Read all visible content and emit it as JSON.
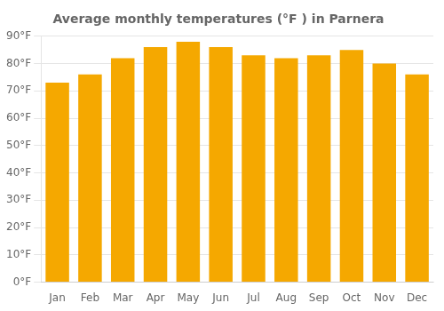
{
  "chart_data": {
    "type": "bar",
    "title": "Average monthly temperatures (°F ) in Parnera",
    "categories": [
      "Jan",
      "Feb",
      "Mar",
      "Apr",
      "May",
      "Jun",
      "Jul",
      "Aug",
      "Sep",
      "Oct",
      "Nov",
      "Dec"
    ],
    "values": [
      73,
      76,
      82,
      86,
      88,
      86,
      83,
      82,
      83,
      85,
      80,
      76
    ],
    "color": "#F5A800",
    "ylim": [
      0,
      90
    ],
    "yticks": [
      {
        "value": 0,
        "label": "0°F"
      },
      {
        "value": 10,
        "label": "10°F"
      },
      {
        "value": 20,
        "label": "20°F"
      },
      {
        "value": 30,
        "label": "30°F"
      },
      {
        "value": 40,
        "label": "40°F"
      },
      {
        "value": 50,
        "label": "50°F"
      },
      {
        "value": 60,
        "label": "60°F"
      },
      {
        "value": 70,
        "label": "70°F"
      },
      {
        "value": 80,
        "label": "80°F"
      },
      {
        "value": 90,
        "label": "90°F"
      }
    ],
    "grid": true
  }
}
